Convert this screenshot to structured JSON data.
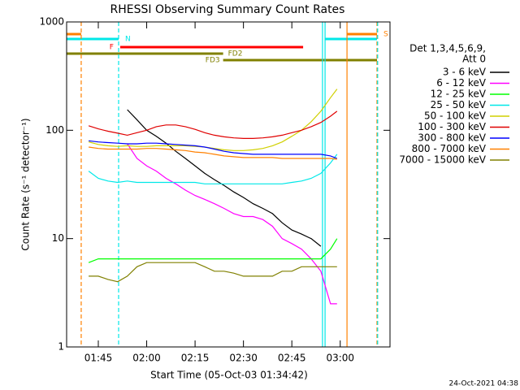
{
  "chart_data": {
    "type": "line",
    "title": "RHESSI Observing Summary Count Rates",
    "xlabel": "Start Time (05-Oct-03 01:34:42)",
    "ylabel": "Count Rate (s⁻¹ detector⁻¹)",
    "legend_title": [
      "Det 1,3,4,5,6,9,",
      "Att 0"
    ],
    "footer": "24-Oct-2021 04:38",
    "log_y": true,
    "xlim": [
      95.18,
      195.43
    ],
    "ylim": [
      1,
      1000
    ],
    "xticks": [
      {
        "value": 105,
        "label": "01:45"
      },
      {
        "value": 120,
        "label": "02:00"
      },
      {
        "value": 135,
        "label": "02:15"
      },
      {
        "value": 150,
        "label": "02:30"
      },
      {
        "value": 165,
        "label": "02:45"
      },
      {
        "value": 180,
        "label": "03:00"
      }
    ],
    "yticks": [
      1,
      10,
      100,
      1000
    ],
    "x": [
      102,
      105,
      108,
      111,
      114,
      117,
      120,
      123,
      126,
      129,
      132,
      135,
      138,
      141,
      144,
      147,
      150,
      153,
      156,
      159,
      162,
      165,
      168,
      171,
      174,
      177,
      179
    ],
    "series": [
      {
        "name": "3 - 6 keV",
        "color": "#000000",
        "values": [
          null,
          null,
          null,
          null,
          155,
          125,
          100,
          88,
          76,
          64,
          55,
          47,
          40,
          35,
          31,
          27,
          24,
          21,
          19,
          17,
          14,
          12,
          11,
          10,
          8.5,
          null,
          null
        ]
      },
      {
        "name": "6 - 12 keV",
        "color": "#ff00ff",
        "values": [
          null,
          null,
          null,
          null,
          75,
          55,
          47,
          42,
          36,
          32,
          28,
          25,
          23,
          21,
          19,
          17,
          16,
          16,
          15,
          13,
          10,
          9,
          8,
          6.5,
          5,
          2.5,
          2.5
        ]
      },
      {
        "name": "12 - 25 keV",
        "color": "#00ff00",
        "values": [
          6,
          6.5,
          6.5,
          6.5,
          6.5,
          6.5,
          6.5,
          6.5,
          6.5,
          6.5,
          6.5,
          6.5,
          6.5,
          6.5,
          6.5,
          6.5,
          6.5,
          6.5,
          6.5,
          6.5,
          6.5,
          6.5,
          6.5,
          6.5,
          6.5,
          8,
          10
        ]
      },
      {
        "name": "25 - 50 keV",
        "color": "#00e8e8",
        "values": [
          42,
          36,
          34,
          33,
          34,
          33,
          33,
          33,
          33,
          33,
          33,
          33,
          32,
          32,
          32,
          32,
          32,
          32,
          32,
          32,
          32,
          33,
          34,
          36,
          40,
          50,
          60
        ]
      },
      {
        "name": "50 - 100 keV",
        "color": "#d0d000",
        "values": [
          78,
          74,
          72,
          71,
          72,
          71,
          71,
          72,
          72,
          72,
          72,
          71,
          70,
          68,
          66,
          65,
          65,
          66,
          68,
          72,
          78,
          88,
          100,
          120,
          150,
          200,
          240
        ]
      },
      {
        "name": "100 - 300 keV",
        "color": "#e00000",
        "values": [
          110,
          103,
          98,
          94,
          90,
          95,
          100,
          108,
          112,
          112,
          108,
          102,
          95,
          90,
          87,
          85,
          84,
          84,
          85,
          87,
          90,
          95,
          100,
          108,
          118,
          135,
          150
        ]
      },
      {
        "name": "300 - 800 keV",
        "color": "#0000ff",
        "values": [
          80,
          78,
          77,
          76,
          75,
          75,
          76,
          76,
          75,
          74,
          73,
          72,
          70,
          67,
          64,
          62,
          61,
          60,
          60,
          60,
          60,
          60,
          60,
          60,
          60,
          58,
          55
        ]
      },
      {
        "name": "800 - 7000 keV",
        "color": "#ff8000",
        "values": [
          70,
          68,
          67,
          67,
          67,
          67,
          68,
          68,
          67,
          66,
          65,
          63,
          62,
          60,
          58,
          57,
          56,
          56,
          56,
          56,
          55,
          55,
          55,
          55,
          55,
          55,
          54
        ]
      },
      {
        "name": "7000 - 15000 keV",
        "color": "#808000",
        "values": [
          4.5,
          4.5,
          4.2,
          4,
          4.5,
          5.5,
          6,
          6,
          6,
          6,
          6,
          6,
          5.5,
          5,
          5,
          4.8,
          4.5,
          4.5,
          4.5,
          4.5,
          5,
          5,
          5.5,
          5.5,
          5.5,
          5.5,
          5.5
        ]
      }
    ],
    "flags": [
      {
        "label": "S",
        "color": "#ff8000",
        "segments": [
          [
            95.2,
            99.7
          ],
          [
            182.1,
            191.4
          ]
        ]
      },
      {
        "label": "N",
        "color": "#00e8e8",
        "segments": [
          [
            95.2,
            111.3
          ],
          [
            175.3,
            191.4
          ]
        ]
      },
      {
        "label": "F",
        "color": "#ff0000",
        "segments": [
          [
            111.8,
            168.5
          ]
        ]
      },
      {
        "label": "FD2",
        "color": "#808000",
        "segments": [
          [
            95.2,
            143.7
          ]
        ]
      },
      {
        "label": "FD3",
        "color": "#808000",
        "segments": [
          [
            143.7,
            191.4
          ]
        ]
      }
    ],
    "vlines": [
      {
        "x": 99.7,
        "color": "#ff8000",
        "dash": true
      },
      {
        "x": 111.3,
        "color": "#00e8e8",
        "dash": true
      },
      {
        "x": 174.5,
        "color": "#00e8e8",
        "dash": false
      },
      {
        "x": 175.3,
        "color": "#00e8e8",
        "dash": false
      },
      {
        "x": 182.1,
        "color": "#ff8000",
        "dash": false
      },
      {
        "x": 191.4,
        "color": "#ff8000",
        "dash": true
      },
      {
        "x": 191.6,
        "color": "#00e8e8",
        "dash": true
      }
    ]
  }
}
